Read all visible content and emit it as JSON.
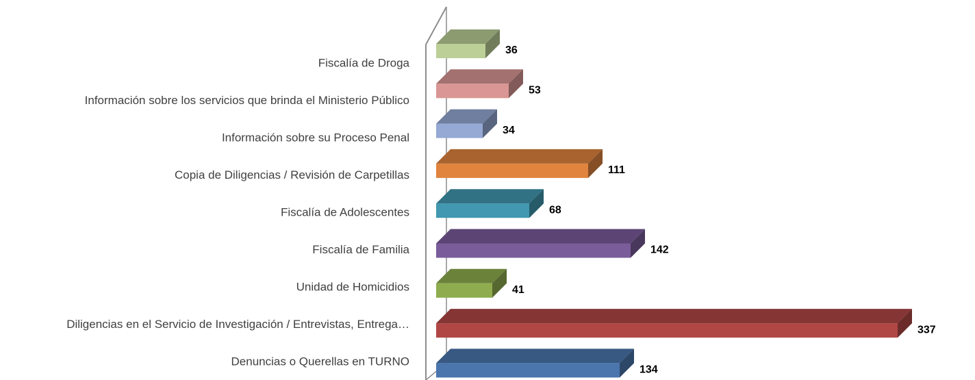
{
  "chart_data": {
    "type": "bar3d",
    "categories": [
      "Fiscalía de Droga",
      "Información sobre los servicios que brinda el Ministerio Público",
      "Información sobre su Proceso Penal",
      "Copia de Diligencias / Revisión de Carpetillas",
      "Fiscalía de Adolescentes",
      "Fiscalía de Familia",
      "Unidad de Homicidios",
      "Diligencias en el Servicio de Investigación / Entrevistas, Entrega…",
      "Denuncias o Querellas en TURNO"
    ],
    "values": [
      36,
      53,
      34,
      111,
      68,
      142,
      41,
      337,
      134
    ],
    "colors": [
      "#bccf97",
      "#d99694",
      "#95a9d4",
      "#e0843e",
      "#4198b0",
      "#7a5c9a",
      "#8fad4e",
      "#b04745",
      "#4a76ad"
    ],
    "xlim": [
      0,
      337
    ]
  }
}
